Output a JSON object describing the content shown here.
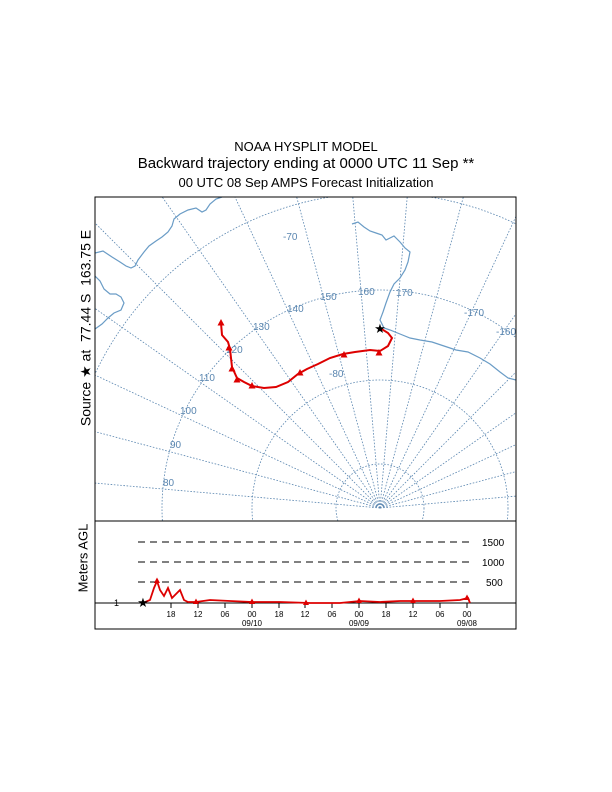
{
  "header": {
    "model": "NOAA HYSPLIT MODEL",
    "trajectory": "Backward trajectory ending at 0000 UTC 11 Sep **",
    "init": "00 UTC 08 Sep    AMPS  Forecast Initialization"
  },
  "source": {
    "prefix": "Source",
    "star": "★",
    "at": "at",
    "lat": "77.44 S",
    "lon": "163.75 E"
  },
  "map": {
    "longitude_labels": [
      {
        "text": "-70",
        "lon": -70
      },
      {
        "text": "110",
        "lon": 110
      },
      {
        "text": "120",
        "lon": 120
      },
      {
        "text": "130",
        "lon": 130
      },
      {
        "text": "140",
        "lon": 140
      },
      {
        "text": "150",
        "lon": 150
      },
      {
        "text": "160",
        "lon": 160
      },
      {
        "text": "170",
        "lon": 170
      },
      {
        "text": "-170",
        "lon": -170
      },
      {
        "text": "-160",
        "lon": -160
      }
    ],
    "latitude_labels": [
      {
        "text": "-80",
        "lat": -80
      },
      {
        "text": "100",
        "lat": 100
      },
      {
        "text": "90",
        "lat": 90
      },
      {
        "text": "80",
        "lat": 80
      }
    ],
    "grid_color": "#5a86b0",
    "coast_color": "#6a9cc6",
    "trajectory_color": "#dd0000"
  },
  "profile": {
    "y_label": "Meters AGL",
    "level_labels": [
      "1500",
      "1000",
      "500"
    ],
    "start_value": "1",
    "time_ticks": [
      "18",
      "12",
      "06",
      "00",
      "18",
      "12",
      "06",
      "00",
      "18",
      "12",
      "06",
      "00"
    ],
    "date_labels": [
      "09/10",
      "09/09",
      "09/08"
    ]
  }
}
